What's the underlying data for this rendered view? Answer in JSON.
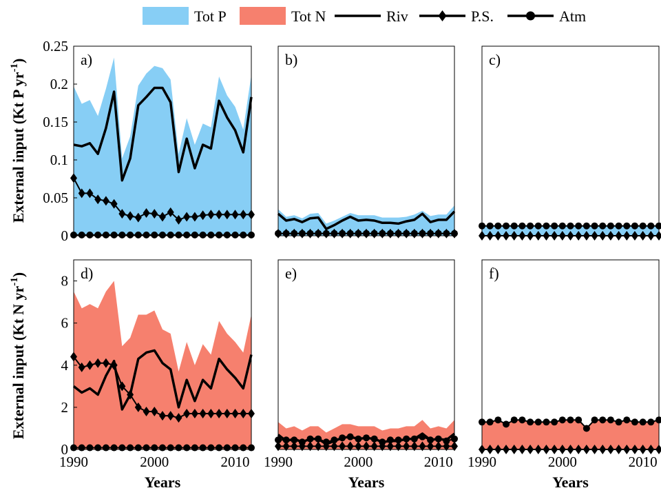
{
  "colors": {
    "tot_p": "#87CEF5",
    "tot_n": "#F6806E",
    "line": "#000000"
  },
  "legend": [
    {
      "label": "Tot P",
      "kind": "patch",
      "color": "#87CEF5"
    },
    {
      "label": "Tot N",
      "kind": "patch",
      "color": "#F6806E"
    },
    {
      "label": "Riv",
      "kind": "line"
    },
    {
      "label": "P.S.",
      "kind": "diamond"
    },
    {
      "label": "Atm",
      "kind": "circle"
    }
  ],
  "y_titles": {
    "top": "External input (Kt P yr",
    "bottom": "External input (Kt N yr",
    "exp": "-1",
    "close": ")"
  },
  "x_title": "Years",
  "chart_data": [
    {
      "panel": "a)",
      "type": "line",
      "fill": "tot_p",
      "xlim": [
        1990,
        2012
      ],
      "ylim": [
        0,
        0.25
      ],
      "yticks": [
        0,
        0.05,
        0.1,
        0.15,
        0.2,
        0.25
      ],
      "ytick_labels": [
        "0",
        "0.05",
        "0.1",
        "0.15",
        "0.2",
        "0.25"
      ],
      "xticks": [],
      "xtick_labels": [],
      "x": [
        1990,
        1991,
        1992,
        1993,
        1994,
        1995,
        1996,
        1997,
        1998,
        1999,
        2000,
        2001,
        2002,
        2003,
        2004,
        2005,
        2006,
        2007,
        2008,
        2009,
        2010,
        2011,
        2012
      ],
      "series": [
        {
          "name": "Tot P",
          "values": [
            0.197,
            0.174,
            0.179,
            0.158,
            0.194,
            0.235,
            0.102,
            0.131,
            0.198,
            0.214,
            0.224,
            0.221,
            0.206,
            0.108,
            0.155,
            0.12,
            0.148,
            0.143,
            0.21,
            0.185,
            0.17,
            0.14,
            0.212
          ]
        },
        {
          "name": "Riv",
          "values": [
            0.12,
            0.118,
            0.122,
            0.108,
            0.142,
            0.19,
            0.073,
            0.102,
            0.172,
            0.183,
            0.195,
            0.195,
            0.176,
            0.084,
            0.128,
            0.089,
            0.12,
            0.115,
            0.178,
            0.156,
            0.139,
            0.11,
            0.183
          ]
        },
        {
          "name": "P.S.",
          "values": [
            0.076,
            0.056,
            0.056,
            0.048,
            0.046,
            0.042,
            0.029,
            0.026,
            0.024,
            0.03,
            0.029,
            0.025,
            0.031,
            0.021,
            0.025,
            0.025,
            0.027,
            0.028,
            0.028,
            0.028,
            0.028,
            0.028,
            0.028
          ]
        },
        {
          "name": "Atm",
          "values": [
            0.001,
            0.001,
            0.001,
            0.001,
            0.001,
            0.001,
            0.001,
            0.001,
            0.001,
            0.001,
            0.001,
            0.001,
            0.001,
            0.001,
            0.001,
            0.001,
            0.001,
            0.001,
            0.001,
            0.001,
            0.001,
            0.001,
            0.001
          ]
        }
      ]
    },
    {
      "panel": "b)",
      "type": "line",
      "fill": "tot_p",
      "xlim": [
        1990,
        2012
      ],
      "ylim": [
        0,
        0.25
      ],
      "yticks": [],
      "ytick_labels": [],
      "xticks": [],
      "xtick_labels": [],
      "x": [
        1990,
        1991,
        1992,
        1993,
        1994,
        1995,
        1996,
        1997,
        1998,
        1999,
        2000,
        2001,
        2002,
        2003,
        2004,
        2005,
        2006,
        2007,
        2008,
        2009,
        2010,
        2011,
        2012
      ],
      "series": [
        {
          "name": "Tot P",
          "values": [
            0.035,
            0.025,
            0.027,
            0.023,
            0.029,
            0.03,
            0.016,
            0.02,
            0.025,
            0.03,
            0.027,
            0.027,
            0.027,
            0.024,
            0.024,
            0.024,
            0.025,
            0.028,
            0.033,
            0.026,
            0.028,
            0.028,
            0.04
          ]
        },
        {
          "name": "Riv",
          "values": [
            0.029,
            0.02,
            0.022,
            0.018,
            0.023,
            0.024,
            0.009,
            0.014,
            0.02,
            0.025,
            0.02,
            0.021,
            0.02,
            0.017,
            0.017,
            0.016,
            0.019,
            0.021,
            0.029,
            0.018,
            0.021,
            0.021,
            0.032
          ]
        },
        {
          "name": "P.S.",
          "values": [
            0.003,
            0.003,
            0.003,
            0.003,
            0.003,
            0.003,
            0.003,
            0.003,
            0.003,
            0.003,
            0.003,
            0.003,
            0.003,
            0.003,
            0.003,
            0.003,
            0.003,
            0.003,
            0.003,
            0.003,
            0.003,
            0.003,
            0.003
          ]
        },
        {
          "name": "Atm",
          "values": [
            0.003,
            0.003,
            0.003,
            0.003,
            0.003,
            0.003,
            0.003,
            0.003,
            0.003,
            0.003,
            0.003,
            0.003,
            0.003,
            0.003,
            0.003,
            0.003,
            0.003,
            0.003,
            0.003,
            0.003,
            0.003,
            0.003,
            0.003
          ]
        }
      ]
    },
    {
      "panel": "c)",
      "type": "line",
      "fill": "tot_p",
      "xlim": [
        1990,
        2012
      ],
      "ylim": [
        0,
        0.25
      ],
      "yticks": [],
      "ytick_labels": [],
      "xticks": [],
      "xtick_labels": [],
      "x": [
        1990,
        1991,
        1992,
        1993,
        1994,
        1995,
        1996,
        1997,
        1998,
        1999,
        2000,
        2001,
        2002,
        2003,
        2004,
        2005,
        2006,
        2007,
        2008,
        2009,
        2010,
        2011,
        2012
      ],
      "series": [
        {
          "name": "Tot P",
          "values": [
            0.013,
            0.013,
            0.013,
            0.013,
            0.013,
            0.013,
            0.013,
            0.013,
            0.013,
            0.013,
            0.013,
            0.013,
            0.013,
            0.013,
            0.013,
            0.013,
            0.013,
            0.013,
            0.013,
            0.013,
            0.013,
            0.013,
            0.013
          ]
        },
        {
          "name": "P.S.",
          "values": [
            0,
            0,
            0,
            0,
            0,
            0,
            0,
            0,
            0,
            0,
            0,
            0,
            0,
            0,
            0,
            0,
            0,
            0,
            0,
            0,
            0,
            0,
            0
          ]
        },
        {
          "name": "Atm",
          "values": [
            0.013,
            0.013,
            0.013,
            0.013,
            0.013,
            0.013,
            0.013,
            0.013,
            0.013,
            0.013,
            0.013,
            0.013,
            0.013,
            0.013,
            0.013,
            0.013,
            0.013,
            0.013,
            0.013,
            0.013,
            0.013,
            0.013,
            0.013
          ]
        }
      ]
    },
    {
      "panel": "d)",
      "type": "line",
      "fill": "tot_n",
      "xlim": [
        1990,
        2012
      ],
      "ylim": [
        0,
        9
      ],
      "yticks": [
        0,
        2,
        4,
        6,
        8
      ],
      "ytick_labels": [
        "0",
        "2",
        "4",
        "6",
        "8"
      ],
      "xticks": [
        1990,
        2000,
        2010
      ],
      "xtick_labels": [
        "1990",
        "2000",
        "2010"
      ],
      "x": [
        1990,
        1991,
        1992,
        1993,
        1994,
        1995,
        1996,
        1997,
        1998,
        1999,
        2000,
        2001,
        2002,
        2003,
        2004,
        2005,
        2006,
        2007,
        2008,
        2009,
        2010,
        2011,
        2012
      ],
      "series": [
        {
          "name": "Tot N",
          "values": [
            7.5,
            6.7,
            6.9,
            6.7,
            7.5,
            8.0,
            4.9,
            5.3,
            6.4,
            6.4,
            6.6,
            5.7,
            5.5,
            3.7,
            5.1,
            4.0,
            5.0,
            4.5,
            6.1,
            5.5,
            5.1,
            4.6,
            6.4
          ]
        },
        {
          "name": "Riv",
          "values": [
            3.0,
            2.7,
            2.9,
            2.6,
            3.5,
            4.2,
            1.9,
            2.6,
            4.3,
            4.6,
            4.7,
            4.1,
            3.8,
            2.0,
            3.3,
            2.3,
            3.3,
            2.9,
            4.3,
            3.8,
            3.4,
            2.9,
            4.5
          ]
        },
        {
          "name": "P.S.",
          "values": [
            4.4,
            3.9,
            4.0,
            4.1,
            4.1,
            4.0,
            3.0,
            2.6,
            2.0,
            1.8,
            1.8,
            1.6,
            1.6,
            1.5,
            1.7,
            1.7,
            1.7,
            1.7,
            1.7,
            1.7,
            1.7,
            1.7,
            1.7
          ]
        },
        {
          "name": "Atm",
          "values": [
            0.08,
            0.08,
            0.08,
            0.08,
            0.08,
            0.08,
            0.08,
            0.08,
            0.08,
            0.08,
            0.08,
            0.08,
            0.08,
            0.08,
            0.08,
            0.08,
            0.08,
            0.08,
            0.08,
            0.08,
            0.08,
            0.08,
            0.08
          ]
        }
      ]
    },
    {
      "panel": "e)",
      "type": "line",
      "fill": "tot_n",
      "xlim": [
        1990,
        2012
      ],
      "ylim": [
        0,
        9
      ],
      "yticks": [],
      "ytick_labels": [],
      "xticks": [
        1990,
        2000,
        2010
      ],
      "xtick_labels": [
        "1990",
        "2000",
        "2010"
      ],
      "x": [
        1990,
        1991,
        1992,
        1993,
        1994,
        1995,
        1996,
        1997,
        1998,
        1999,
        2000,
        2001,
        2002,
        2003,
        2004,
        2005,
        2006,
        2007,
        2008,
        2009,
        2010,
        2011,
        2012
      ],
      "series": [
        {
          "name": "Tot N",
          "values": [
            1.3,
            1.0,
            1.1,
            0.9,
            1.1,
            1.1,
            0.8,
            1.0,
            1.2,
            1.2,
            1.1,
            1.1,
            1.1,
            0.9,
            1.0,
            1.0,
            1.1,
            1.1,
            1.4,
            1.0,
            1.1,
            1.0,
            1.4
          ]
        },
        {
          "name": "Riv",
          "values": [
            0.7,
            0.4,
            0.5,
            0.35,
            0.5,
            0.5,
            0.25,
            0.4,
            0.55,
            0.6,
            0.5,
            0.55,
            0.5,
            0.35,
            0.4,
            0.4,
            0.5,
            0.5,
            0.75,
            0.45,
            0.5,
            0.45,
            0.75
          ]
        },
        {
          "name": "P.S.",
          "values": [
            0.15,
            0.15,
            0.15,
            0.15,
            0.15,
            0.15,
            0.15,
            0.15,
            0.15,
            0.15,
            0.15,
            0.15,
            0.15,
            0.15,
            0.15,
            0.15,
            0.15,
            0.15,
            0.15,
            0.15,
            0.15,
            0.15,
            0.15
          ]
        },
        {
          "name": "Atm",
          "values": [
            0.45,
            0.45,
            0.45,
            0.35,
            0.5,
            0.5,
            0.35,
            0.45,
            0.55,
            0.6,
            0.5,
            0.55,
            0.5,
            0.35,
            0.45,
            0.45,
            0.5,
            0.5,
            0.6,
            0.45,
            0.5,
            0.4,
            0.5
          ]
        }
      ]
    },
    {
      "panel": "f)",
      "type": "line",
      "fill": "tot_n",
      "xlim": [
        1990,
        2012
      ],
      "ylim": [
        0,
        9
      ],
      "yticks": [],
      "ytick_labels": [],
      "xticks": [
        1990,
        2000,
        2010
      ],
      "xtick_labels": [
        "1990",
        "2000",
        "2010"
      ],
      "x": [
        1990,
        1991,
        1992,
        1993,
        1994,
        1995,
        1996,
        1997,
        1998,
        1999,
        2000,
        2001,
        2002,
        2003,
        2004,
        2005,
        2006,
        2007,
        2008,
        2009,
        2010,
        2011,
        2012
      ],
      "series": [
        {
          "name": "Tot N",
          "values": [
            1.3,
            1.3,
            1.4,
            1.2,
            1.4,
            1.4,
            1.3,
            1.3,
            1.3,
            1.3,
            1.4,
            1.4,
            1.4,
            1.0,
            1.4,
            1.4,
            1.4,
            1.3,
            1.4,
            1.3,
            1.3,
            1.3,
            1.4
          ]
        },
        {
          "name": "P.S.",
          "values": [
            0,
            0,
            0,
            0,
            0,
            0,
            0,
            0,
            0,
            0,
            0,
            0,
            0,
            0,
            0,
            0,
            0,
            0,
            0,
            0,
            0,
            0,
            0
          ]
        },
        {
          "name": "Atm",
          "values": [
            1.3,
            1.3,
            1.4,
            1.2,
            1.4,
            1.4,
            1.3,
            1.3,
            1.3,
            1.3,
            1.4,
            1.4,
            1.4,
            1.0,
            1.4,
            1.4,
            1.4,
            1.3,
            1.4,
            1.3,
            1.3,
            1.3,
            1.4
          ]
        }
      ]
    }
  ]
}
